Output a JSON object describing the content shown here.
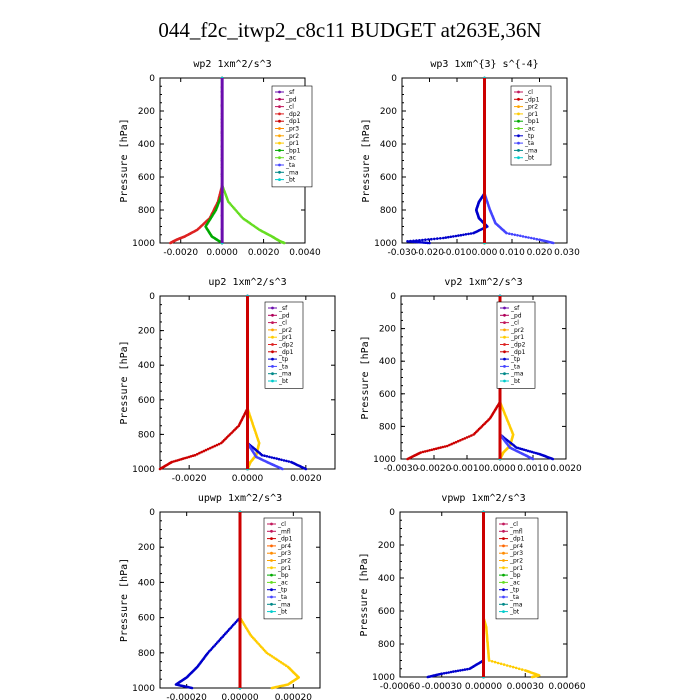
{
  "figure": {
    "title": "044_f2c_itwp2_c8c11  BUDGET at263E,36N"
  },
  "colors": {
    "sf": "#6a0dad",
    "pd": "#b0005a",
    "cl": "#c2185b",
    "mfl": "#c2185b",
    "dp1": "#cc0000",
    "dp2": "#dd2222",
    "pr1": "#ffcc00",
    "pr2": "#ffa500",
    "pr3": "#ff8c00",
    "pr4": "#ff6600",
    "bp1": "#00aa00",
    "bp": "#00aa00",
    "ac": "#66dd22",
    "tp": "#0000cc",
    "ta": "#4444ff",
    "ma": "#008888",
    "bt": "#00cccc"
  },
  "chart_data": [
    {
      "type": "line",
      "title": "wp2  1xm^2/s^3",
      "ylabel": "Pressure [hPa]",
      "xlim": [
        -0.003,
        0.004
      ],
      "ylim": [
        1000,
        0
      ],
      "xticks": [
        -0.002,
        0,
        0.002,
        0.004
      ],
      "xticklabels": [
        "-0.0020",
        "0.0000",
        "0.0020",
        "0.0040"
      ],
      "yticks": [
        0,
        200,
        400,
        600,
        800,
        1000
      ],
      "legend": [
        "_sf",
        "_pd",
        "_cl",
        "_dp2",
        "_dp1",
        "_pr3",
        "_pr2",
        "_pr1",
        "_bp1",
        "_ac",
        "_ta",
        "_ma",
        "_bt"
      ],
      "series": [
        {
          "name": "_sf",
          "p": [
            0,
            1000
          ],
          "v": [
            0,
            0
          ]
        },
        {
          "name": "_pd",
          "p": [
            0,
            1000
          ],
          "v": [
            0,
            0
          ]
        },
        {
          "name": "_cl",
          "p": [
            0,
            1000
          ],
          "v": [
            0,
            0
          ]
        },
        {
          "name": "_dp2",
          "p": [
            0,
            650,
            750,
            850,
            920,
            960,
            980,
            1000
          ],
          "v": [
            0,
            0,
            -0.0002,
            -0.0006,
            -0.0012,
            -0.0018,
            -0.0022,
            -0.0025
          ]
        },
        {
          "name": "_dp1",
          "p": [
            0,
            1000
          ],
          "v": [
            0,
            0
          ]
        },
        {
          "name": "_pr3",
          "p": [
            0,
            1000
          ],
          "v": [
            0,
            0
          ]
        },
        {
          "name": "_pr2",
          "p": [
            0,
            1000
          ],
          "v": [
            0,
            0
          ]
        },
        {
          "name": "_pr1",
          "p": [
            0,
            1000
          ],
          "v": [
            0,
            0
          ]
        },
        {
          "name": "_bp1",
          "p": [
            0,
            700,
            800,
            900,
            960,
            1000
          ],
          "v": [
            0,
            0,
            -0.0003,
            -0.0008,
            -0.0005,
            0
          ]
        },
        {
          "name": "_ac",
          "p": [
            0,
            650,
            750,
            850,
            920,
            960,
            990,
            1000
          ],
          "v": [
            0,
            0,
            0.0003,
            0.001,
            0.0018,
            0.0024,
            0.0028,
            0.003
          ]
        },
        {
          "name": "_ta",
          "p": [
            0,
            1000
          ],
          "v": [
            0,
            0
          ]
        },
        {
          "name": "_ma",
          "p": [
            0,
            1000
          ],
          "v": [
            0,
            0
          ]
        },
        {
          "name": "_bt",
          "p": [
            0,
            1000
          ],
          "v": [
            0,
            0
          ]
        }
      ]
    },
    {
      "type": "line",
      "title": "wp3  1xm^{3} s^{-4}",
      "ylabel": "Pressure [hPa]",
      "xlim": [
        -0.03,
        0.03
      ],
      "ylim": [
        1000,
        0
      ],
      "xticks": [
        -0.03,
        -0.02,
        -0.01,
        0,
        0.01,
        0.02,
        0.03
      ],
      "xticklabels": [
        "-0.030",
        "-0.020",
        "-0.010",
        "0.000",
        "0.010",
        "0.020",
        "0.030"
      ],
      "yticks": [
        0,
        200,
        400,
        600,
        800,
        1000
      ],
      "legend": [
        "_cl",
        "_dp1",
        "_pr2",
        "_pr1",
        "_bp1",
        "_ac",
        "_tp",
        "_ta",
        "_ma",
        "_bt"
      ],
      "series": [
        {
          "name": "_cl",
          "p": [
            0,
            1000
          ],
          "v": [
            0,
            0
          ]
        },
        {
          "name": "_dp1",
          "p": [
            0,
            1000
          ],
          "v": [
            0,
            0
          ]
        },
        {
          "name": "_pr2",
          "p": [
            0,
            1000
          ],
          "v": [
            0,
            0
          ]
        },
        {
          "name": "_pr1",
          "p": [
            0,
            1000
          ],
          "v": [
            0,
            0
          ]
        },
        {
          "name": "_bp1",
          "p": [
            0,
            1000
          ],
          "v": [
            0,
            0
          ]
        },
        {
          "name": "_ac",
          "p": [
            0,
            1000
          ],
          "v": [
            0,
            0
          ]
        },
        {
          "name": "_tp",
          "p": [
            0,
            700,
            750,
            800,
            850,
            900,
            940,
            970,
            990,
            1000
          ],
          "v": [
            0,
            0,
            -0.002,
            -0.003,
            -0.002,
            0.001,
            -0.004,
            -0.015,
            -0.028,
            -0.02
          ]
        },
        {
          "name": "_ta",
          "p": [
            0,
            700,
            800,
            880,
            940,
            980,
            1000
          ],
          "v": [
            0,
            0,
            0.002,
            0.004,
            0.008,
            0.02,
            0.025
          ]
        },
        {
          "name": "_ma",
          "p": [
            0,
            1000
          ],
          "v": [
            0,
            0
          ]
        },
        {
          "name": "_bt",
          "p": [
            0,
            1000
          ],
          "v": [
            0,
            0
          ]
        }
      ]
    },
    {
      "type": "line",
      "title": "up2  1xm^2/s^3",
      "ylabel": "Pressure [hPa]",
      "xlim": [
        -0.003,
        0.003
      ],
      "ylim": [
        1000,
        0
      ],
      "xticks": [
        -0.002,
        0,
        0.002
      ],
      "xticklabels": [
        "-0.0020",
        "0.0000",
        "0.0020"
      ],
      "yticks": [
        0,
        200,
        400,
        600,
        800,
        1000
      ],
      "legend": [
        "_sf",
        "_pd",
        "_cl",
        "_pr2",
        "_pr1",
        "_dp2",
        "_dp1",
        "_tp",
        "_ta",
        "_ma",
        "_bt"
      ],
      "series": [
        {
          "name": "_sf",
          "p": [
            0,
            1000
          ],
          "v": [
            0,
            0
          ]
        },
        {
          "name": "_pd",
          "p": [
            0,
            1000
          ],
          "v": [
            0,
            0
          ]
        },
        {
          "name": "_cl",
          "p": [
            0,
            1000
          ],
          "v": [
            0,
            0
          ]
        },
        {
          "name": "_pr2",
          "p": [
            0,
            1000
          ],
          "v": [
            0,
            0
          ]
        },
        {
          "name": "_pr1",
          "p": [
            0,
            650,
            750,
            850,
            920,
            960,
            1000
          ],
          "v": [
            0,
            0,
            0.0002,
            0.0004,
            0.0003,
            0.0001,
            0
          ]
        },
        {
          "name": "_dp2",
          "p": [
            0,
            1000
          ],
          "v": [
            0,
            0
          ]
        },
        {
          "name": "_dp1",
          "p": [
            0,
            650,
            750,
            850,
            920,
            960,
            1000
          ],
          "v": [
            0,
            0,
            -0.0003,
            -0.0009,
            -0.0018,
            -0.0026,
            -0.003
          ]
        },
        {
          "name": "_tp",
          "p": [
            0,
            850,
            920,
            960,
            1000
          ],
          "v": [
            0,
            0,
            0.0005,
            0.0015,
            0.002
          ]
        },
        {
          "name": "_ta",
          "p": [
            0,
            850,
            930,
            970,
            1000
          ],
          "v": [
            0,
            0,
            0.0003,
            0.0008,
            0.0012
          ]
        },
        {
          "name": "_ma",
          "p": [
            0,
            1000
          ],
          "v": [
            0,
            0
          ]
        },
        {
          "name": "_bt",
          "p": [
            0,
            1000
          ],
          "v": [
            0,
            0
          ]
        }
      ]
    },
    {
      "type": "line",
      "title": "vp2  1xm^2/s^3",
      "ylabel": "Pressure [hPa]",
      "xlim": [
        -0.003,
        0.002
      ],
      "ylim": [
        1000,
        0
      ],
      "xticks": [
        -0.003,
        -0.002,
        -0.001,
        0,
        0.001,
        0.002
      ],
      "xticklabels": [
        "-0.0030",
        "-0.0020",
        "-0.0010",
        "0.0000",
        "0.0010",
        "0.0020"
      ],
      "yticks": [
        0,
        200,
        400,
        600,
        800,
        1000
      ],
      "legend": [
        "_sf",
        "_pd",
        "_cl",
        "_pr2",
        "_pr1",
        "_dp2",
        "_dp1",
        "_tp",
        "_ta",
        "_ma",
        "_bt"
      ],
      "series": [
        {
          "name": "_sf",
          "p": [
            0,
            1000
          ],
          "v": [
            0,
            0
          ]
        },
        {
          "name": "_pd",
          "p": [
            0,
            1000
          ],
          "v": [
            0,
            0
          ]
        },
        {
          "name": "_cl",
          "p": [
            0,
            1000
          ],
          "v": [
            0,
            0
          ]
        },
        {
          "name": "_pr2",
          "p": [
            0,
            1000
          ],
          "v": [
            0,
            0
          ]
        },
        {
          "name": "_pr1",
          "p": [
            0,
            650,
            750,
            850,
            920,
            960,
            1000
          ],
          "v": [
            0,
            0,
            0.0002,
            0.0004,
            0.0003,
            0.0001,
            0
          ]
        },
        {
          "name": "_dp2",
          "p": [
            0,
            1000
          ],
          "v": [
            0,
            0
          ]
        },
        {
          "name": "_dp1",
          "p": [
            0,
            650,
            750,
            850,
            920,
            960,
            1000
          ],
          "v": [
            0,
            0,
            -0.0003,
            -0.0008,
            -0.0016,
            -0.0024,
            -0.0028
          ]
        },
        {
          "name": "_tp",
          "p": [
            0,
            850,
            930,
            970,
            1000
          ],
          "v": [
            0,
            0,
            0.0005,
            0.0012,
            0.0016
          ]
        },
        {
          "name": "_ta",
          "p": [
            0,
            850,
            930,
            970,
            1000
          ],
          "v": [
            0,
            0,
            0.0003,
            0.0007,
            0.001
          ]
        },
        {
          "name": "_ma",
          "p": [
            0,
            1000
          ],
          "v": [
            0,
            0
          ]
        },
        {
          "name": "_bt",
          "p": [
            0,
            1000
          ],
          "v": [
            0,
            0
          ]
        }
      ]
    },
    {
      "type": "line",
      "title": "upwp  1xm^2/s^3",
      "ylabel": "Pressure [hPa]",
      "xlim": [
        -0.0003,
        0.0003
      ],
      "ylim": [
        1000,
        0
      ],
      "xticks": [
        -0.0002,
        0,
        0.0002
      ],
      "xticklabels": [
        "-0.00020",
        "0.00000",
        "0.00020"
      ],
      "yticks": [
        0,
        200,
        400,
        600,
        800,
        1000
      ],
      "legend": [
        "_cl",
        "_mfl",
        "_dp1",
        "_pr4",
        "_pr3",
        "_pr2",
        "_pr1",
        "_bp",
        "_ac",
        "_tp",
        "_ta",
        "_ma",
        "_bt"
      ],
      "series": [
        {
          "name": "_cl",
          "p": [
            0,
            1000
          ],
          "v": [
            0,
            0
          ]
        },
        {
          "name": "_mfl",
          "p": [
            0,
            1000
          ],
          "v": [
            0,
            0
          ]
        },
        {
          "name": "_dp1",
          "p": [
            0,
            1000
          ],
          "v": [
            0,
            0
          ]
        },
        {
          "name": "_pr4",
          "p": [
            0,
            1000
          ],
          "v": [
            0,
            0
          ]
        },
        {
          "name": "_pr3",
          "p": [
            0,
            1000
          ],
          "v": [
            0,
            0
          ]
        },
        {
          "name": "_pr2",
          "p": [
            0,
            1000
          ],
          "v": [
            0,
            0
          ]
        },
        {
          "name": "_pr1",
          "p": [
            0,
            600,
            700,
            800,
            880,
            940,
            980,
            1000
          ],
          "v": [
            0,
            0,
            4e-05,
            0.0001,
            0.00018,
            0.00022,
            0.00018,
            0.00012
          ]
        },
        {
          "name": "_bp",
          "p": [
            0,
            1000
          ],
          "v": [
            0,
            0
          ]
        },
        {
          "name": "_ac",
          "p": [
            0,
            1000
          ],
          "v": [
            0,
            0
          ]
        },
        {
          "name": "_tp",
          "p": [
            0,
            600,
            700,
            800,
            880,
            940,
            980,
            1000
          ],
          "v": [
            0,
            0,
            -6e-05,
            -0.00012,
            -0.00016,
            -0.0002,
            -0.00024,
            -0.00018
          ]
        },
        {
          "name": "_ta",
          "p": [
            0,
            1000
          ],
          "v": [
            0,
            0
          ]
        },
        {
          "name": "_ma",
          "p": [
            0,
            1000
          ],
          "v": [
            0,
            0
          ]
        },
        {
          "name": "_bt",
          "p": [
            0,
            1000
          ],
          "v": [
            0,
            0
          ]
        }
      ]
    },
    {
      "type": "line",
      "title": "vpwp  1xm^2/s^3",
      "ylabel": "Pressure [hPa]",
      "xlim": [
        -0.0006,
        0.0006
      ],
      "ylim": [
        1000,
        0
      ],
      "xticks": [
        -0.0006,
        -0.0003,
        0,
        0.0003,
        0.0006
      ],
      "xticklabels": [
        "-0.00060",
        "-0.00030",
        "0.00000",
        "0.00030",
        "0.00060"
      ],
      "yticks": [
        0,
        200,
        400,
        600,
        800,
        1000
      ],
      "legend": [
        "_cl",
        "_mfl",
        "_dp1",
        "_pr4",
        "_pr3",
        "_pr2",
        "_pr1",
        "_bp",
        "_ac",
        "_tp",
        "_ta",
        "_ma",
        "_bt"
      ],
      "series": [
        {
          "name": "_cl",
          "p": [
            0,
            1000
          ],
          "v": [
            0,
            0
          ]
        },
        {
          "name": "_mfl",
          "p": [
            0,
            1000
          ],
          "v": [
            0,
            0
          ]
        },
        {
          "name": "_dp1",
          "p": [
            0,
            1000
          ],
          "v": [
            0,
            0
          ]
        },
        {
          "name": "_pr4",
          "p": [
            0,
            1000
          ],
          "v": [
            0,
            0
          ]
        },
        {
          "name": "_pr3",
          "p": [
            0,
            1000
          ],
          "v": [
            0,
            0
          ]
        },
        {
          "name": "_pr2",
          "p": [
            0,
            1000
          ],
          "v": [
            0,
            0
          ]
        },
        {
          "name": "_pr1",
          "p": [
            0,
            640,
            700,
            800,
            900,
            960,
            990,
            1000
          ],
          "v": [
            0,
            0,
            2e-05,
            3e-05,
            4e-05,
            0.0003,
            0.0004,
            0.00035
          ]
        },
        {
          "name": "_bp",
          "p": [
            0,
            1000
          ],
          "v": [
            0,
            0
          ]
        },
        {
          "name": "_ac",
          "p": [
            0,
            1000
          ],
          "v": [
            0,
            0
          ]
        },
        {
          "name": "_tp",
          "p": [
            0,
            900,
            950,
            980,
            1000
          ],
          "v": [
            0,
            0,
            -0.0001,
            -0.0003,
            -0.0004
          ]
        },
        {
          "name": "_ta",
          "p": [
            0,
            1000
          ],
          "v": [
            0,
            0
          ]
        },
        {
          "name": "_ma",
          "p": [
            0,
            1000
          ],
          "v": [
            0,
            0
          ]
        },
        {
          "name": "_bt",
          "p": [
            0,
            1000
          ],
          "v": [
            0,
            0
          ]
        }
      ]
    }
  ]
}
